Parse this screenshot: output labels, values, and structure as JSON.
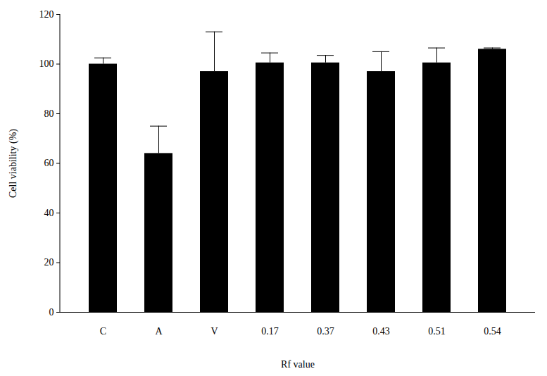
{
  "chart_data": {
    "type": "bar",
    "x_label": "Rf value",
    "y_label": "Cell viability (%)",
    "categories": [
      "C",
      "A",
      "V",
      "0.17",
      "0.37",
      "0.43",
      "0.51",
      "0.54"
    ],
    "values": [
      100,
      64,
      97,
      100.5,
      100.5,
      97,
      100.5,
      106
    ],
    "errors": [
      2.5,
      11,
      16,
      4,
      3,
      8,
      6,
      0.5
    ],
    "color": "#000000",
    "ylim": [
      0,
      120
    ],
    "yticks": [
      0,
      20,
      40,
      60,
      80,
      100,
      120
    ],
    "grid": false
  }
}
